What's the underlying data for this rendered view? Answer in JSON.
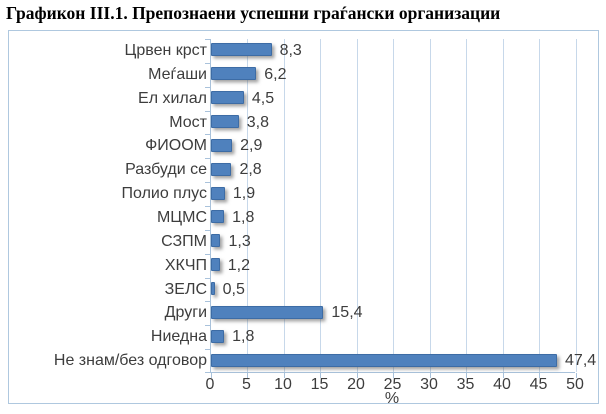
{
  "title": "Графикон III.1. Препознаени успешни граѓански организации",
  "chart_data": {
    "type": "bar",
    "orientation": "horizontal",
    "title": "Графикон III.1. Препознаени успешни граѓански организации",
    "categories": [
      "Црвен крст",
      "Меѓаши",
      "Ел хилал",
      "Мост",
      "ФИООМ",
      "Разбуди се",
      "Полио плус",
      "МЦМС",
      "СЗПМ",
      "ХКЧП",
      "ЗЕЛС",
      "Други",
      "Ниедна",
      "Не знам/без одговор"
    ],
    "values": [
      8.3,
      6.2,
      4.5,
      3.8,
      2.9,
      2.8,
      1.9,
      1.8,
      1.3,
      1.2,
      0.5,
      15.4,
      1.8,
      47.4
    ],
    "value_labels": [
      "8,3",
      "6,2",
      "4,5",
      "3,8",
      "2,9",
      "2,8",
      "1,9",
      "1,8",
      "1,3",
      "1,2",
      "0,5",
      "15,4",
      "1,8",
      "47,4"
    ],
    "xlabel": "%",
    "ylabel": "",
    "xlim": [
      0,
      50
    ],
    "xticks": [
      0,
      5,
      10,
      15,
      20,
      25,
      30,
      35,
      40,
      45,
      50
    ],
    "grid": true,
    "legend": "none",
    "bar_color": "#4F81BD",
    "bar_border_color": "#3D6CA5",
    "gridline_color": "#C7D8EA",
    "axis_color": "#A9C2DB",
    "frame_border_color": "#AFC8DF",
    "text_color": "#3d3d3d"
  }
}
